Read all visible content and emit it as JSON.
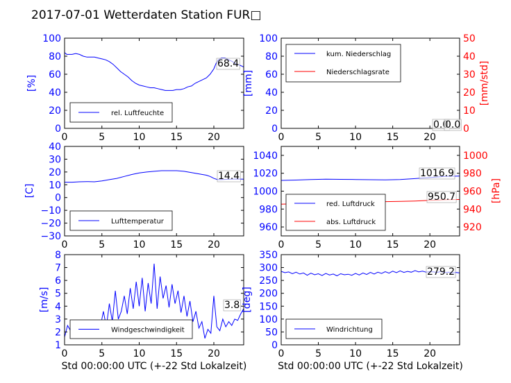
{
  "title": "2017-07-01 Wetterdaten Station FUR□",
  "colors": {
    "blue": "#0000ff",
    "red": "#ff0000",
    "axis": "#000000"
  },
  "chart_data": [
    {
      "type": "line",
      "xlabel": "",
      "ylabel": "[%]",
      "xlim": [
        0,
        24
      ],
      "ylim": [
        0,
        100
      ],
      "xticks": [
        0,
        5,
        10,
        15,
        20
      ],
      "yticks": [
        0,
        20,
        40,
        60,
        80,
        100
      ],
      "grid": false,
      "legend_position": "lower-left",
      "series": [
        {
          "name": "rel. Luftfeuchte",
          "axis": "left",
          "color": "#0000ff",
          "x": [
            0,
            0.3,
            0.6,
            1,
            1.5,
            2,
            2.5,
            3,
            3.5,
            4,
            4.5,
            5,
            5.5,
            6,
            6.5,
            7,
            7.5,
            8,
            8.5,
            9,
            9.5,
            10,
            10.5,
            11,
            11.5,
            12,
            12.5,
            13,
            13.5,
            14,
            14.5,
            15,
            15.5,
            16,
            16.5,
            17,
            17.5,
            18,
            18.5,
            19,
            19.5,
            20,
            20.3,
            20.6,
            21,
            21.5,
            22,
            22.5,
            23,
            23.5,
            24
          ],
          "y": [
            84,
            82,
            82,
            82,
            83,
            82,
            80,
            79,
            79,
            79,
            78,
            77,
            76,
            74,
            71,
            67,
            63,
            60,
            57,
            53,
            50,
            48,
            47,
            46,
            45,
            45,
            44,
            43,
            42,
            42,
            42,
            43,
            43,
            44,
            46,
            47,
            50,
            52,
            54,
            56,
            60,
            66,
            72,
            76,
            78,
            78,
            76,
            74,
            71,
            70,
            68
          ]
        }
      ],
      "annotations": [
        {
          "text": "68.4"
        }
      ]
    },
    {
      "type": "line",
      "xlabel": "",
      "ylabel": "[mm]",
      "ylabel_right": "[mm/std]",
      "xlim": [
        0,
        24
      ],
      "ylim": [
        0,
        100
      ],
      "ylim_right": [
        0,
        50
      ],
      "xticks": [
        0,
        5,
        10,
        15,
        20
      ],
      "yticks": [
        0,
        20,
        40,
        60,
        80,
        100
      ],
      "yticks_right": [
        0,
        10,
        20,
        30,
        40,
        50
      ],
      "grid": false,
      "legend_position": "upper-left",
      "series": [
        {
          "name": "kum. Niederschlag",
          "axis": "left",
          "color": "#0000ff",
          "x": [
            0,
            24
          ],
          "y": [
            0,
            0
          ]
        },
        {
          "name": "Niederschlagsrate",
          "axis": "right",
          "color": "#ff0000",
          "x": [
            0,
            24
          ],
          "y": [
            0,
            0
          ]
        }
      ],
      "annotations": [
        {
          "text": "0.0"
        },
        {
          "text": "0.0"
        }
      ]
    },
    {
      "type": "line",
      "xlabel": "",
      "ylabel": "[C]",
      "xlim": [
        0,
        24
      ],
      "ylim": [
        -30,
        40
      ],
      "xticks": [
        0,
        5,
        10,
        15,
        20
      ],
      "yticks": [
        -30,
        -20,
        -10,
        0,
        10,
        20,
        30,
        40
      ],
      "grid": false,
      "legend_position": "lower-left",
      "series": [
        {
          "name": "Lufttemperatur",
          "axis": "left",
          "color": "#0000ff",
          "x": [
            0,
            1,
            2,
            3,
            4,
            5,
            6,
            7,
            8,
            9,
            10,
            11,
            12,
            13,
            14,
            15,
            16,
            17,
            18,
            19,
            19.5,
            20,
            20.5,
            21,
            22,
            23,
            24
          ],
          "y": [
            12,
            12,
            12.3,
            12.5,
            12.3,
            13,
            14,
            15,
            16.5,
            18,
            19.2,
            20,
            20.5,
            21,
            21,
            21,
            20.5,
            19.5,
            18.5,
            17.5,
            16.5,
            15,
            14,
            14,
            14.4,
            14.5,
            14.4
          ]
        }
      ],
      "annotations": [
        {
          "text": "14.4"
        }
      ]
    },
    {
      "type": "line",
      "xlabel": "",
      "ylabel": "",
      "ylabel_right": "[hPa]",
      "xlim": [
        0,
        24
      ],
      "ylim": [
        950,
        1050
      ],
      "ylim_right": [
        910,
        1010
      ],
      "xticks": [
        0,
        5,
        10,
        15,
        20
      ],
      "yticks": [
        960,
        980,
        1000,
        1020,
        1040
      ],
      "yticks_right": [
        920,
        940,
        960,
        980,
        1000
      ],
      "grid": false,
      "legend_position": "lower-left",
      "series": [
        {
          "name": "red. Luftdruck",
          "axis": "left",
          "color": "#0000ff",
          "x": [
            0,
            2,
            4,
            6,
            8,
            10,
            12,
            14,
            16,
            18,
            20,
            22,
            24
          ],
          "y": [
            1012,
            1012.4,
            1013,
            1013.4,
            1013.2,
            1013,
            1012.8,
            1012.6,
            1013,
            1014,
            1015.2,
            1016.5,
            1016.9
          ]
        },
        {
          "name": "abs. Luftdruck",
          "axis": "right",
          "color": "#ff0000",
          "x": [
            0,
            2,
            4,
            6,
            8,
            10,
            12,
            14,
            16,
            18,
            20,
            22,
            24
          ],
          "y": [
            945.5,
            946,
            946.5,
            947,
            947.5,
            948,
            948.2,
            948.3,
            948.5,
            949,
            949.8,
            950.4,
            950.7
          ]
        }
      ],
      "annotations": [
        {
          "text": "1016.9"
        },
        {
          "text": "950.7"
        }
      ]
    },
    {
      "type": "line",
      "xlabel": "Std 00:00:00 UTC (+-22 Std Lokalzeit)",
      "ylabel": "[m/s]",
      "xlim": [
        0,
        24
      ],
      "ylim": [
        1,
        8
      ],
      "xticks": [
        0,
        5,
        10,
        15,
        20
      ],
      "yticks": [
        1,
        2,
        3,
        4,
        5,
        6,
        7,
        8
      ],
      "grid": false,
      "legend_position": "lower-left",
      "series": [
        {
          "name": "Windgeschwindigkeit",
          "axis": "left",
          "color": "#0000ff",
          "x": [
            0,
            0.4,
            0.8,
            1.2,
            1.6,
            2,
            2.4,
            2.8,
            3.2,
            3.6,
            4,
            4.4,
            4.8,
            5.2,
            5.6,
            6,
            6.4,
            6.8,
            7.2,
            7.6,
            8,
            8.4,
            8.8,
            9.2,
            9.6,
            10,
            10.4,
            10.8,
            11.2,
            11.6,
            12,
            12.4,
            12.8,
            13.2,
            13.6,
            14,
            14.4,
            14.8,
            15.2,
            15.6,
            16,
            16.4,
            16.8,
            17.2,
            17.6,
            18,
            18.4,
            18.8,
            19.2,
            19.6,
            20,
            20.4,
            20.8,
            21.2,
            21.6,
            22,
            22.4,
            22.8,
            23.2,
            23.6,
            24
          ],
          "y": [
            1.6,
            2.5,
            2.1,
            2.6,
            2.2,
            2.4,
            2.0,
            2.6,
            2.3,
            1.5,
            2.8,
            1.8,
            2.4,
            3.6,
            2.4,
            4.2,
            2.8,
            5.2,
            3.0,
            3.6,
            4.8,
            3.4,
            5.4,
            3.8,
            5.9,
            4.0,
            6.2,
            3.6,
            5.8,
            4.2,
            7.3,
            3.8,
            6.3,
            4.6,
            5.6,
            3.9,
            5.7,
            4.2,
            5.2,
            3.5,
            4.8,
            3.2,
            4.4,
            2.8,
            3.6,
            2.3,
            2.8,
            1.5,
            2.2,
            1.9,
            4.8,
            2.4,
            2.1,
            3.0,
            2.4,
            2.8,
            2.5,
            3.0,
            2.9,
            3.4,
            3.8
          ]
        }
      ],
      "annotations": [
        {
          "text": "3.8"
        }
      ]
    },
    {
      "type": "line",
      "xlabel": "Std 00:00:00 UTC (+-22 Std Lokalzeit)",
      "ylabel": "[deg]",
      "xlim": [
        0,
        24
      ],
      "ylim": [
        0,
        350
      ],
      "xticks": [
        0,
        5,
        10,
        15,
        20
      ],
      "yticks": [
        0,
        50,
        100,
        150,
        200,
        250,
        300,
        350
      ],
      "grid": false,
      "legend_position": "lower-left",
      "series": [
        {
          "name": "Windrichtung",
          "axis": "left",
          "color": "#0000ff",
          "x": [
            0,
            0.5,
            1,
            1.5,
            2,
            2.5,
            3,
            3.5,
            4,
            4.5,
            5,
            5.5,
            6,
            6.5,
            7,
            7.5,
            8,
            8.5,
            9,
            9.5,
            10,
            10.5,
            11,
            11.5,
            12,
            12.5,
            13,
            13.5,
            14,
            14.5,
            15,
            15.5,
            16,
            16.5,
            17,
            17.5,
            18,
            18.5,
            19,
            19.5,
            20,
            20.5,
            21,
            21.5,
            22,
            22.5,
            23,
            23.5,
            24
          ],
          "y": [
            285,
            280,
            283,
            276,
            282,
            275,
            279,
            270,
            278,
            272,
            276,
            269,
            277,
            271,
            275,
            268,
            276,
            272,
            274,
            270,
            277,
            271,
            279,
            273,
            281,
            275,
            282,
            277,
            284,
            278,
            286,
            280,
            287,
            281,
            285,
            282,
            288,
            283,
            286,
            282,
            284,
            283,
            281,
            285,
            280,
            282,
            279,
            281,
            279
          ]
        }
      ],
      "annotations": [
        {
          "text": "279.2"
        }
      ]
    }
  ]
}
